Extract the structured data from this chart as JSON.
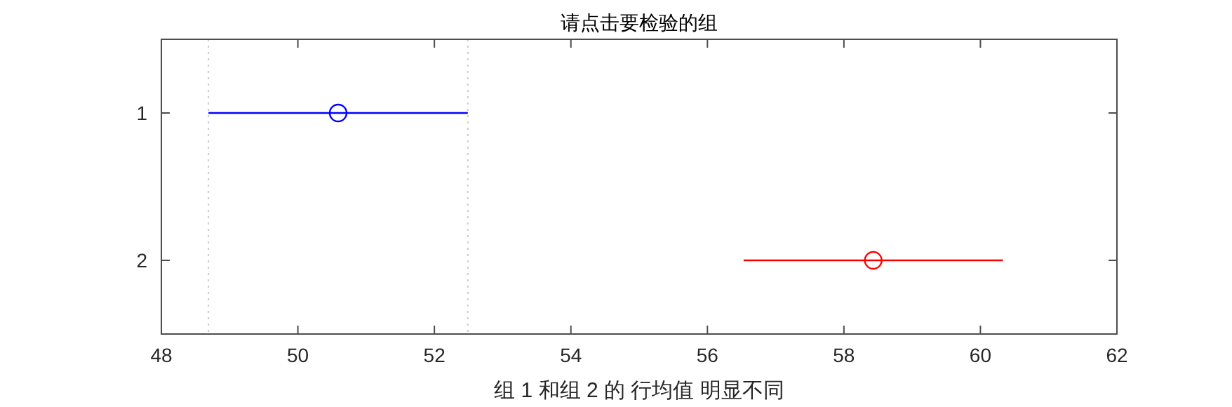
{
  "chart_data": {
    "type": "scatter",
    "orientation": "horizontal",
    "title": "请点击要检验的组",
    "xlabel": "组 1 和组 2 的 行均值 明显不同",
    "categories": [
      "1",
      "2"
    ],
    "values": [
      50.59,
      58.43
    ],
    "errors": [
      1.9,
      1.9
    ],
    "colors": [
      "#0000ff",
      "#ff0000"
    ],
    "marker": "circle",
    "xlim": [
      48,
      62
    ],
    "xticks": [
      48,
      50,
      52,
      54,
      56,
      58,
      60,
      62
    ],
    "ref_lines": [
      {
        "axis": "x",
        "value": 48.69,
        "color": "#cccccc",
        "line_style": "dotted"
      },
      {
        "axis": "x",
        "value": 52.49,
        "color": "#cccccc",
        "line_style": "dotted"
      }
    ]
  }
}
